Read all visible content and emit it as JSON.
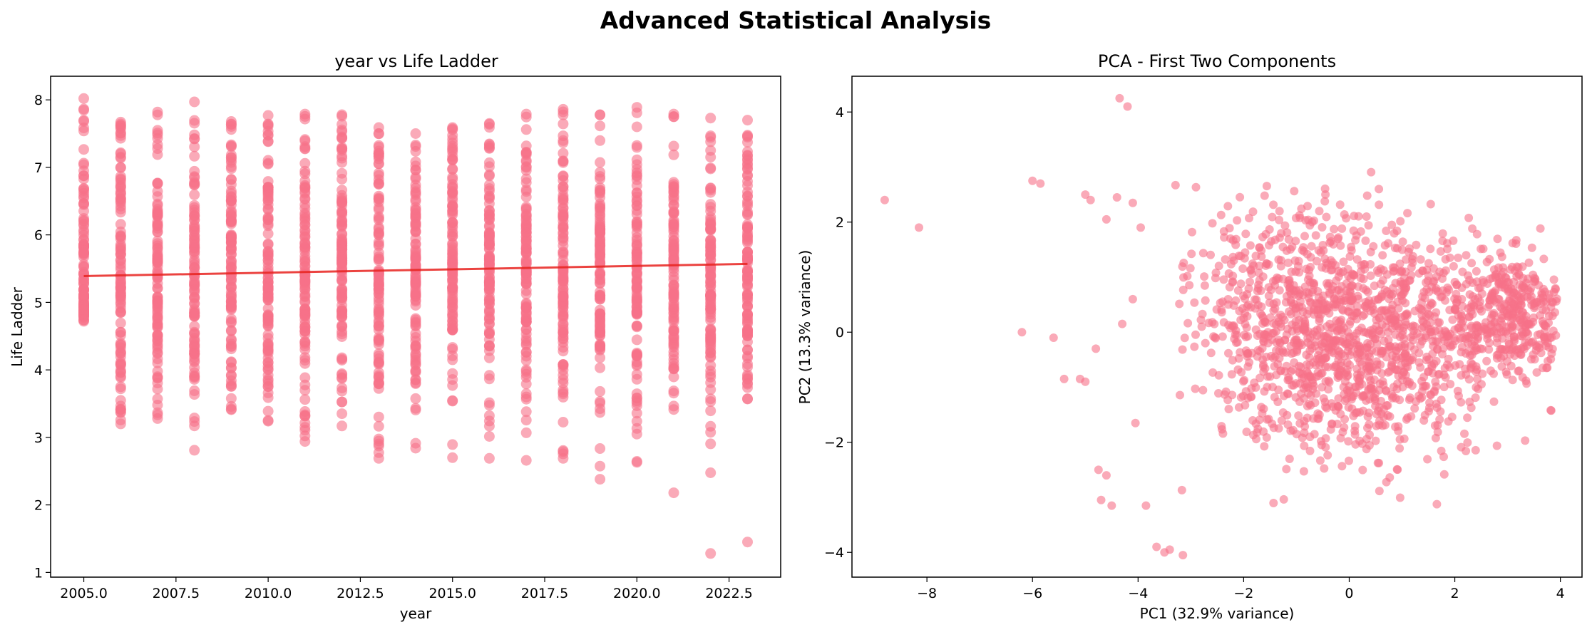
{
  "figure": {
    "title": "Advanced Statistical Analysis"
  },
  "chart_data": [
    {
      "type": "scatter",
      "title": "year vs Life Ladder",
      "xlabel": "year",
      "ylabel": "Life Ladder",
      "xlim": [
        2004.1,
        2023.9
      ],
      "ylim": [
        0.93,
        8.35
      ],
      "xticks": [
        2005.0,
        2007.5,
        2010.0,
        2012.5,
        2015.0,
        2017.5,
        2020.0,
        2022.5
      ],
      "xtick_labels": [
        "2005.0",
        "2007.5",
        "2010.0",
        "2012.5",
        "2015.0",
        "2017.5",
        "2020.0",
        "2022.5"
      ],
      "yticks": [
        1,
        2,
        3,
        4,
        5,
        6,
        7,
        8
      ],
      "ytick_labels": [
        "1",
        "2",
        "3",
        "4",
        "5",
        "6",
        "7",
        "8"
      ],
      "grid": false,
      "point_color": "#f77189",
      "point_opacity": 0.6,
      "trend_line": {
        "color": "#e8221e",
        "x": [
          2005,
          2023
        ],
        "y": [
          5.39,
          5.57
        ]
      },
      "years": [
        2005,
        2006,
        2007,
        2008,
        2009,
        2010,
        2011,
        2012,
        2013,
        2014,
        2015,
        2016,
        2017,
        2018,
        2019,
        2020,
        2021,
        2022,
        2023
      ],
      "year_ranges": [
        [
          4.72,
          8.02
        ],
        [
          3.2,
          7.67
        ],
        [
          3.28,
          7.82
        ],
        [
          2.81,
          7.97
        ],
        [
          3.41,
          7.68
        ],
        [
          3.24,
          7.77
        ],
        [
          2.94,
          7.79
        ],
        [
          3.17,
          7.78
        ],
        [
          2.69,
          7.59
        ],
        [
          2.84,
          7.5
        ],
        [
          2.7,
          7.59
        ],
        [
          2.69,
          7.65
        ],
        [
          2.66,
          7.79
        ],
        [
          2.69,
          7.86
        ],
        [
          2.38,
          7.78
        ],
        [
          2.63,
          7.89
        ],
        [
          2.18,
          7.79
        ],
        [
          1.28,
          7.73
        ],
        [
          1.45,
          7.7
        ]
      ],
      "point_count": 2100
    },
    {
      "type": "scatter",
      "title": "PCA - First Two Components",
      "xlabel": "PC1 (32.9% variance)",
      "ylabel": "PC2 (13.3% variance)",
      "xlim": [
        -9.42,
        4.41
      ],
      "ylim": [
        -4.45,
        4.65
      ],
      "xticks": [
        -8,
        -6,
        -4,
        -2,
        0,
        2,
        4
      ],
      "xtick_labels": [
        "−8",
        "−6",
        "−4",
        "−2",
        "0",
        "2",
        "4"
      ],
      "yticks": [
        -4,
        -2,
        0,
        2,
        4
      ],
      "ytick_labels": [
        "−4",
        "−2",
        "0",
        "2",
        "4"
      ],
      "grid": false,
      "point_color": "#f77189",
      "point_opacity": 0.6,
      "outliers": [
        [
          -8.8,
          2.4
        ],
        [
          -8.15,
          1.9
        ],
        [
          -6.2,
          0.0
        ],
        [
          -6.0,
          2.75
        ],
        [
          -5.85,
          2.7
        ],
        [
          -5.6,
          -0.1
        ],
        [
          -5.4,
          -0.85
        ],
        [
          -5.1,
          -0.85
        ],
        [
          -5.0,
          -0.9
        ],
        [
          -5.0,
          2.5
        ],
        [
          -4.9,
          2.4
        ],
        [
          -4.8,
          -0.3
        ],
        [
          -4.75,
          -2.5
        ],
        [
          -4.7,
          -3.05
        ],
        [
          -4.6,
          -2.6
        ],
        [
          -4.5,
          -3.15
        ],
        [
          -4.35,
          4.25
        ],
        [
          -4.2,
          4.1
        ],
        [
          -4.1,
          2.35
        ],
        [
          -4.05,
          -1.65
        ],
        [
          -3.85,
          -3.15
        ],
        [
          -3.65,
          -3.9
        ],
        [
          -3.5,
          -4.0
        ],
        [
          -3.4,
          -3.95
        ],
        [
          -3.15,
          -4.05
        ],
        [
          -4.6,
          2.05
        ],
        [
          -4.4,
          2.45
        ],
        [
          -4.3,
          0.15
        ],
        [
          -4.1,
          0.6
        ],
        [
          -3.95,
          1.9
        ]
      ],
      "cloud_count": 1800
    }
  ]
}
